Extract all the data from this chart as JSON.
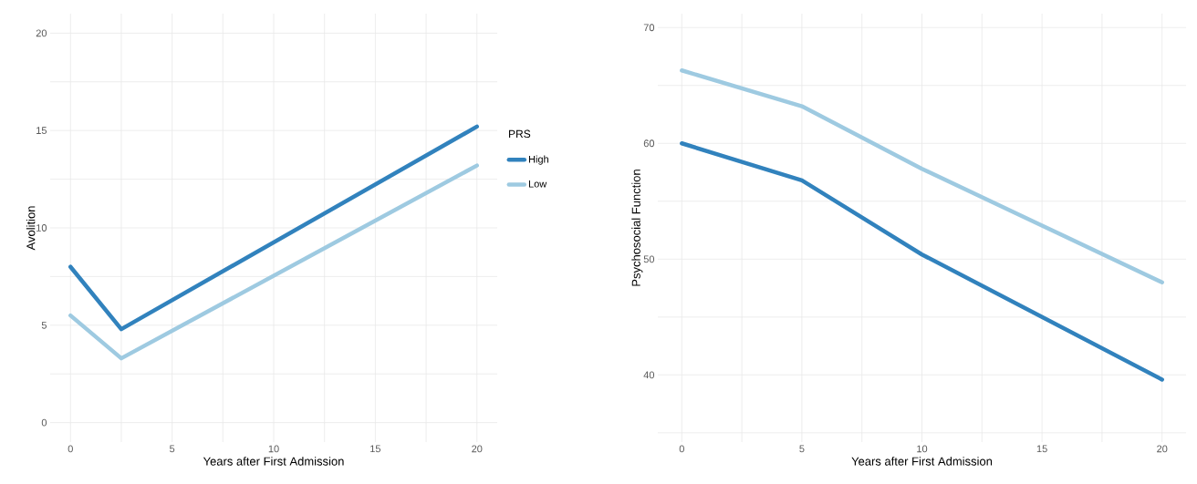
{
  "chart_data": [
    {
      "type": "line",
      "xlabel": "Years after First Admission",
      "ylabel": "Avolition",
      "legend_title": "PRS",
      "legend": "right",
      "grid": true,
      "xlim": [
        -1,
        21
      ],
      "ylim": [
        -1,
        21
      ],
      "xticks": [
        0,
        {
          "value": 2.5,
          "label": null
        },
        5,
        {
          "value": 7.5,
          "label": null
        },
        10,
        {
          "value": 12.5,
          "label": null
        },
        15,
        {
          "value": 17.5,
          "label": null
        },
        20
      ],
      "yticks": [
        0,
        {
          "value": 2.5,
          "label": null
        },
        5,
        {
          "value": 7.5,
          "label": null
        },
        10,
        {
          "value": 12.5,
          "label": null
        },
        15,
        {
          "value": 17.5,
          "label": null
        },
        20
      ],
      "series": [
        {
          "name": "High",
          "color": "#3182bd",
          "x": [
            0,
            2.5,
            20
          ],
          "values": [
            8.0,
            4.8,
            15.2
          ]
        },
        {
          "name": "Low",
          "color": "#9ecae1",
          "x": [
            0,
            2.5,
            20
          ],
          "values": [
            5.5,
            3.3,
            13.2
          ]
        }
      ]
    },
    {
      "type": "line",
      "xlabel": "Years after First Admission",
      "ylabel": "Psychosocial Function",
      "grid": true,
      "xlim": [
        -1,
        21
      ],
      "ylim": [
        34.2,
        71.2
      ],
      "xticks": [
        0,
        {
          "value": 2.5,
          "label": null
        },
        5,
        {
          "value": 7.5,
          "label": null
        },
        10,
        {
          "value": 12.5,
          "label": null
        },
        15,
        {
          "value": 17.5,
          "label": null
        },
        20
      ],
      "yticks": [
        {
          "value": 35,
          "label": null
        },
        40,
        {
          "value": 45,
          "label": null
        },
        50,
        {
          "value": 55,
          "label": null
        },
        60,
        {
          "value": 65,
          "label": null
        },
        70
      ],
      "series": [
        {
          "color": "#3182bd",
          "x": [
            0,
            5,
            10,
            15,
            20
          ],
          "values": [
            60.0,
            56.8,
            50.4,
            45.0,
            39.6
          ]
        },
        {
          "color": "#9ecae1",
          "x": [
            0,
            5,
            10,
            15,
            20
          ],
          "values": [
            66.3,
            63.2,
            57.8,
            52.9,
            48.0
          ]
        }
      ]
    }
  ]
}
